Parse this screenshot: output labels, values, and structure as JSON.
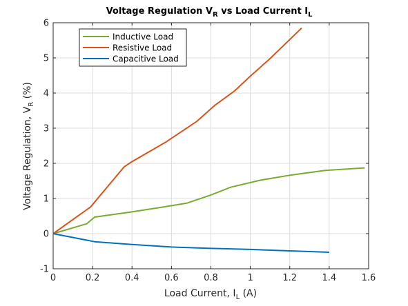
{
  "chart_data": {
    "type": "line",
    "title_main": "Voltage Regulation V",
    "title_sub1": "R",
    "title_mid": " vs Load Current I",
    "title_sub2": "L",
    "xlabel_main": "Load Current, I",
    "xlabel_sub": "L",
    "xlabel_tail": " (A)",
    "ylabel_main": "Voltage Regulation, V",
    "ylabel_sub": "R",
    "ylabel_tail": " (%)",
    "xlim": [
      0,
      1.6
    ],
    "ylim": [
      -1,
      6
    ],
    "xticks": [
      "0",
      "0.2",
      "0.4",
      "0.6",
      "0.8",
      "1",
      "1.2",
      "1.4",
      "1.6"
    ],
    "xtick_values": [
      0,
      0.2,
      0.4,
      0.6,
      0.8,
      1.0,
      1.2,
      1.4,
      1.6
    ],
    "yticks": [
      "-1",
      "0",
      "1",
      "2",
      "3",
      "4",
      "5",
      "6"
    ],
    "ytick_values": [
      -1,
      0,
      1,
      2,
      3,
      4,
      5,
      6
    ],
    "grid": true,
    "legend_position": "top-left",
    "series": [
      {
        "name": "Inductive Load",
        "color": "#77AC30",
        "points": [
          [
            0,
            0
          ],
          [
            0.17,
            0.28
          ],
          [
            0.21,
            0.47
          ],
          [
            0.4,
            0.62
          ],
          [
            0.55,
            0.75
          ],
          [
            0.68,
            0.87
          ],
          [
            0.8,
            1.1
          ],
          [
            0.9,
            1.32
          ],
          [
            1.05,
            1.52
          ],
          [
            1.2,
            1.66
          ],
          [
            1.38,
            1.8
          ],
          [
            1.58,
            1.87
          ]
        ]
      },
      {
        "name": "Resistive Load",
        "color": "#D95319",
        "points": [
          [
            0,
            0
          ],
          [
            0.19,
            0.76
          ],
          [
            0.36,
            1.9
          ],
          [
            0.4,
            2.05
          ],
          [
            0.57,
            2.6
          ],
          [
            0.73,
            3.2
          ],
          [
            0.82,
            3.65
          ],
          [
            0.92,
            4.06
          ],
          [
            1.0,
            4.48
          ],
          [
            1.1,
            4.98
          ],
          [
            1.26,
            5.85
          ]
        ]
      },
      {
        "name": "Capacitive Load",
        "color": "#0072BD",
        "points": [
          [
            0,
            0
          ],
          [
            0.21,
            -0.23
          ],
          [
            0.4,
            -0.31
          ],
          [
            0.6,
            -0.38
          ],
          [
            0.8,
            -0.42
          ],
          [
            1.0,
            -0.45
          ],
          [
            1.2,
            -0.49
          ],
          [
            1.4,
            -0.53
          ]
        ]
      }
    ]
  }
}
